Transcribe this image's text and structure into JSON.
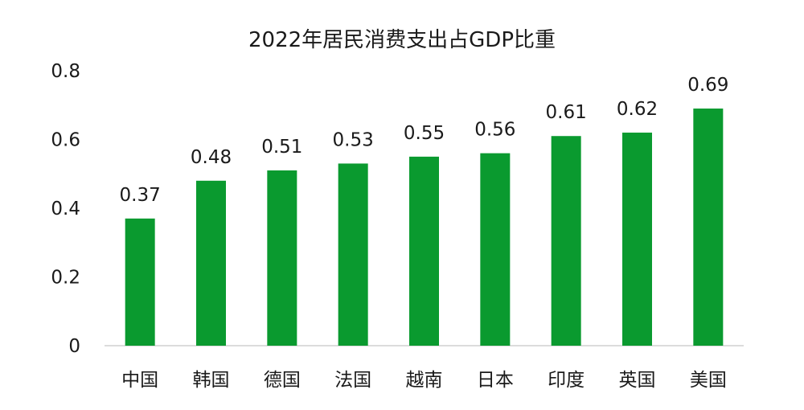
{
  "chart_data": {
    "type": "bar",
    "title": "2022年居民消费支出占GDP比重",
    "xlabel": "",
    "ylabel": "",
    "categories": [
      "中国",
      "韩国",
      "德国",
      "法国",
      "越南",
      "日本",
      "印度",
      "英国",
      "美国"
    ],
    "values": [
      0.37,
      0.48,
      0.51,
      0.53,
      0.55,
      0.56,
      0.61,
      0.62,
      0.69
    ],
    "ylim": [
      0,
      0.8
    ],
    "yticks": [
      "0",
      "0.2",
      "0.4",
      "0.6",
      "0.8"
    ],
    "data_labels": [
      "0.37",
      "0.48",
      "0.51",
      "0.53",
      "0.55",
      "0.56",
      "0.61",
      "0.62",
      "0.69"
    ],
    "grid": false,
    "legend": "none",
    "bar_color": "#0a9a2f"
  }
}
